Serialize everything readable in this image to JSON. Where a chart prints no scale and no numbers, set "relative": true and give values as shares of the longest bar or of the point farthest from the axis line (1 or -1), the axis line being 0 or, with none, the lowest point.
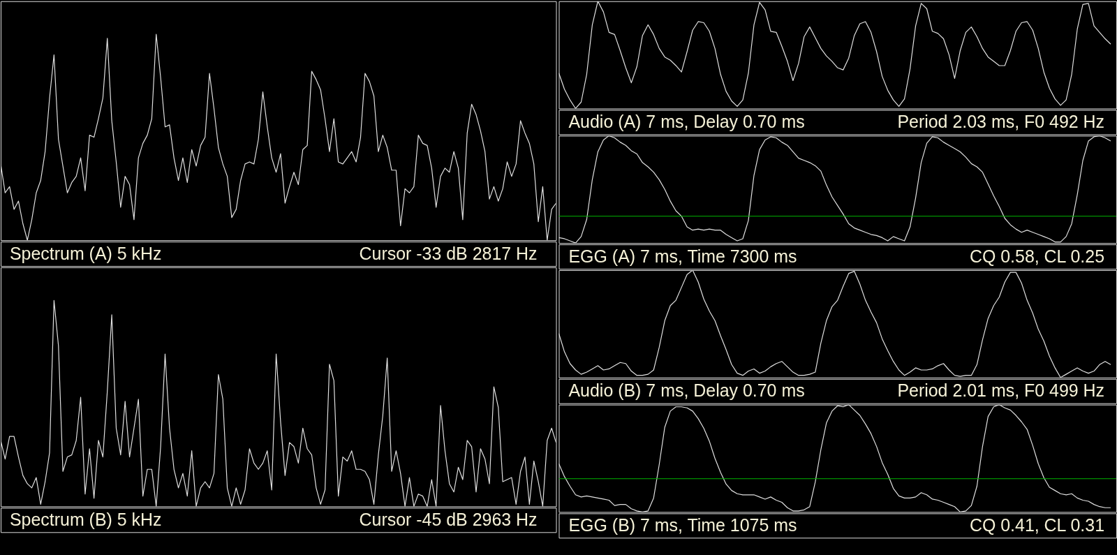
{
  "chart_data": [
    {
      "type": "line",
      "title": "Spectrum (A)   5 kHz",
      "annotations": [
        "Cursor  -33 dB   2817 Hz"
      ],
      "relative": true,
      "tick_labels": false,
      "categories": [
        null,
        null,
        null,
        null,
        null,
        null,
        null,
        null,
        null,
        null,
        null,
        null,
        null,
        null,
        null,
        null,
        null,
        null,
        null,
        null,
        null,
        null,
        null,
        null,
        null,
        null,
        null,
        null,
        null,
        null,
        null,
        null,
        null,
        null,
        null,
        null,
        null,
        null,
        null,
        null,
        null,
        null,
        null,
        null,
        null,
        null,
        null,
        null,
        null,
        null,
        null,
        null,
        null,
        null,
        null,
        null,
        null,
        null,
        null,
        null,
        null,
        null,
        null,
        null,
        null,
        null,
        null,
        null,
        null,
        null,
        null,
        null,
        null,
        null,
        null,
        null,
        null,
        null,
        null,
        null,
        null,
        null,
        null,
        null,
        null,
        null,
        null,
        null,
        null,
        null,
        null,
        null,
        null,
        null,
        null,
        null,
        null,
        null,
        null,
        null,
        null,
        null,
        null,
        null,
        null,
        null,
        null,
        null,
        null,
        null,
        null,
        null,
        null,
        null,
        null,
        null,
        null,
        null,
        null,
        null,
        null,
        null,
        null,
        null,
        null,
        null
      ],
      "series": [
        {
          "color": "#e0e0e0",
          "values": [
            0.37,
            0.23,
            0.26,
            0.15,
            0.19,
            0.08,
            0,
            0.1,
            0.23,
            0.29,
            0.43,
            0.69,
            0.9,
            0.49,
            0.36,
            0.23,
            0.28,
            0.31,
            0.4,
            0.24,
            0.51,
            0.5,
            0.59,
            0.69,
            0.98,
            0.58,
            0.38,
            0.16,
            0.31,
            0.27,
            0.1,
            0.4,
            0.47,
            0.51,
            0.59,
            1.0,
            0.79,
            0.55,
            0.56,
            0.4,
            0.29,
            0.4,
            0.28,
            0.44,
            0.36,
            0.46,
            0.5,
            0.81,
            0.64,
            0.45,
            0.37,
            0.31,
            0.11,
            0.15,
            0.29,
            0.37,
            0.38,
            0.37,
            0.49,
            0.72,
            0.55,
            0.4,
            0.33,
            0.42,
            0.18,
            0.26,
            0.33,
            0.27,
            0.44,
            0.46,
            0.82,
            0.78,
            0.73,
            0.59,
            0.43,
            0.59,
            0.38,
            0.37,
            0.4,
            0.43,
            0.38,
            0.5,
            0.81,
            0.77,
            0.7,
            0.43,
            0.51,
            0.45,
            0.34,
            0.34,
            0.07,
            0.25,
            0.23,
            0.26,
            0.51,
            0.47,
            0.46,
            0.35,
            0.16,
            0.31,
            0.35,
            0.33,
            0.43,
            0.35,
            0.1,
            0.52,
            0.66,
            0.61,
            0.53,
            0.43,
            0.2,
            0.26,
            0.19,
            0.25,
            0.38,
            0.31,
            0.37,
            0.58,
            0.52,
            0.47,
            0.37,
            0.09,
            0.26,
            0,
            0.15,
            0.18
          ]
        }
      ]
    },
    {
      "type": "line",
      "title": "Audio (A) 7  ms, Delay 0.70 ms",
      "annotations": [
        "Period 2.03 ms, F0 492 Hz"
      ],
      "relative": true,
      "tick_labels": false,
      "categories": [
        null,
        null,
        null,
        null,
        null,
        null,
        null,
        null,
        null,
        null,
        null,
        null,
        null,
        null,
        null,
        null,
        null,
        null,
        null,
        null,
        null,
        null,
        null,
        null,
        null,
        null,
        null,
        null,
        null,
        null,
        null,
        null,
        null,
        null,
        null,
        null,
        null,
        null,
        null,
        null,
        null,
        null,
        null,
        null,
        null,
        null,
        null,
        null,
        null,
        null,
        null,
        null,
        null,
        null,
        null,
        null,
        null,
        null,
        null,
        null,
        null,
        null,
        null,
        null,
        null,
        null,
        null,
        null,
        null,
        null,
        null,
        null,
        null,
        null,
        null,
        null,
        null,
        null,
        null,
        null,
        null,
        null,
        null,
        null,
        null,
        null,
        null,
        null,
        null,
        null,
        null,
        null,
        null,
        null,
        null,
        null,
        null,
        null,
        null,
        null,
        null
      ],
      "series": [
        {
          "color": "#e0e0e0",
          "values": [
            0.33,
            0.18,
            0.08,
            0,
            0.06,
            0.32,
            0.78,
            1.0,
            0.9,
            0.71,
            0.69,
            0.54,
            0.38,
            0.24,
            0.39,
            0.68,
            0.78,
            0.69,
            0.56,
            0.48,
            0.45,
            0.4,
            0.34,
            0.53,
            0.73,
            0.81,
            0.8,
            0.72,
            0.56,
            0.32,
            0.16,
            0.07,
            0.02,
            0.08,
            0.33,
            0.78,
            0.99,
            0.92,
            0.72,
            0.71,
            0.58,
            0.44,
            0.26,
            0.42,
            0.67,
            0.76,
            0.66,
            0.56,
            0.49,
            0.44,
            0.38,
            0.36,
            0.47,
            0.68,
            0.79,
            0.81,
            0.71,
            0.53,
            0.3,
            0.17,
            0.08,
            0.02,
            0.09,
            0.37,
            0.77,
            0.98,
            0.93,
            0.72,
            0.7,
            0.65,
            0.5,
            0.28,
            0.54,
            0.71,
            0.76,
            0.67,
            0.56,
            0.48,
            0.44,
            0.4,
            0.4,
            0.54,
            0.72,
            0.8,
            0.81,
            0.73,
            0.56,
            0.34,
            0.19,
            0.09,
            0.03,
            0.08,
            0.32,
            0.74,
            0.97,
            0.98,
            0.77,
            0.71,
            0.65,
            0.6,
            null
          ]
        }
      ]
    },
    {
      "type": "line",
      "title": "EGG (A) 7  ms, Time 7300 ms",
      "annotations": [
        "CQ 0.58, CL 0.25"
      ],
      "relative": true,
      "tick_labels": false,
      "categories": [
        null,
        null,
        null,
        null,
        null,
        null,
        null,
        null,
        null,
        null,
        null,
        null,
        null,
        null,
        null,
        null,
        null,
        null,
        null,
        null,
        null,
        null,
        null,
        null,
        null,
        null,
        null,
        null,
        null,
        null,
        null,
        null,
        null,
        null,
        null,
        null,
        null,
        null,
        null,
        null,
        null,
        null,
        null,
        null,
        null,
        null,
        null,
        null,
        null,
        null,
        null,
        null,
        null,
        null,
        null,
        null,
        null,
        null,
        null,
        null,
        null,
        null,
        null,
        null,
        null,
        null,
        null,
        null,
        null,
        null,
        null,
        null,
        null,
        null,
        null,
        null,
        null,
        null,
        null,
        null,
        null,
        null,
        null,
        null,
        null,
        null,
        null,
        null,
        null,
        null,
        null,
        null,
        null,
        null,
        null,
        null,
        null,
        null,
        null,
        null,
        null
      ],
      "series": [
        {
          "color": "#e0e0e0",
          "values": [
            0.05,
            0.04,
            0.02,
            0,
            0.06,
            0.22,
            0.59,
            0.85,
            0.96,
            1.0,
            0.98,
            0.94,
            0.91,
            0.86,
            0.83,
            0.75,
            0.71,
            0.66,
            0.59,
            0.5,
            0.39,
            0.3,
            0.25,
            0.15,
            0.12,
            0.13,
            0.12,
            0.13,
            0.12,
            0.12,
            0.08,
            0.05,
            0.02,
            0.04,
            0.21,
            0.63,
            0.87,
            0.96,
            0.99,
            0.98,
            0.94,
            0.91,
            0.85,
            0.79,
            0.77,
            0.75,
            0.72,
            0.67,
            0.54,
            0.43,
            0.35,
            0.27,
            0.18,
            0.14,
            0.12,
            0.1,
            0.08,
            0.07,
            0.05,
            0.02,
            0.06,
            0.04,
            0.02,
            0.15,
            0.42,
            0.75,
            0.93,
            0.99,
            0.98,
            0.94,
            0.91,
            0.88,
            0.85,
            0.8,
            0.74,
            0.71,
            0.66,
            0.55,
            0.44,
            0.34,
            0.23,
            0.17,
            0.13,
            0.1,
            0.12,
            0.1,
            0.08,
            0.06,
            0.04,
            0.01,
            0.01,
            0.06,
            0.18,
            0.45,
            0.77,
            0.95,
            0.99,
            1.0,
            0.98,
            0.95,
            null
          ]
        }
      ],
      "ref_lines": [
        {
          "axis": "y",
          "value": 0.25,
          "color": "#00b400"
        }
      ]
    },
    {
      "type": "line",
      "title": "Spectrum (B)   5 kHz",
      "annotations": [
        "Cursor  -45 dB   2963 Hz"
      ],
      "relative": true,
      "tick_labels": false,
      "categories": [
        null,
        null,
        null,
        null,
        null,
        null,
        null,
        null,
        null,
        null,
        null,
        null,
        null,
        null,
        null,
        null,
        null,
        null,
        null,
        null,
        null,
        null,
        null,
        null,
        null,
        null,
        null,
        null,
        null,
        null,
        null,
        null,
        null,
        null,
        null,
        null,
        null,
        null,
        null,
        null,
        null,
        null,
        null,
        null,
        null,
        null,
        null,
        null,
        null,
        null,
        null,
        null,
        null,
        null,
        null,
        null,
        null,
        null,
        null,
        null,
        null,
        null,
        null,
        null,
        null,
        null,
        null,
        null,
        null,
        null,
        null,
        null,
        null,
        null,
        null,
        null,
        null,
        null,
        null,
        null,
        null,
        null,
        null,
        null,
        null,
        null,
        null,
        null,
        null,
        null,
        null,
        null,
        null,
        null,
        null,
        null,
        null,
        null,
        null,
        null,
        null,
        null,
        null,
        null,
        null,
        null,
        null,
        null,
        null,
        null,
        null,
        null,
        null,
        null,
        null,
        null,
        null,
        null,
        null,
        null,
        null,
        null,
        null,
        null,
        null,
        null
      ],
      "series": [
        {
          "color": "#e0e0e0",
          "values": [
            0.32,
            0.23,
            0.34,
            0.34,
            0.24,
            0.15,
            0.11,
            0.09,
            0.14,
            0.01,
            0.12,
            0.26,
            1.0,
            0.78,
            0.17,
            0.24,
            0.25,
            0.32,
            0.53,
            0.06,
            0.28,
            0.04,
            0.32,
            0.24,
            0.56,
            0.93,
            0.38,
            0.25,
            0.51,
            0.24,
            0.38,
            0.52,
            0.05,
            0.18,
            0.18,
            0,
            0.29,
            0.74,
            0.38,
            0.18,
            0.09,
            0.16,
            0.05,
            0.27,
            0,
            0.09,
            0.12,
            0.09,
            0.16,
            0.64,
            0.52,
            0.09,
            0,
            0.09,
            0.01,
            0.08,
            0.28,
            0.21,
            0.18,
            0.21,
            0.27,
            0.08,
            0.74,
            0.41,
            0.15,
            0.31,
            0.29,
            0.21,
            0.38,
            0.28,
            0.25,
            0.09,
            0.01,
            0.08,
            0.69,
            0.61,
            0.05,
            0.24,
            0.22,
            0.27,
            0.18,
            0.18,
            0.17,
            0.13,
            0.01,
            0.25,
            0.44,
            0.72,
            0.17,
            0.27,
            0.16,
            0,
            0.14,
            0,
            0.06,
            0.05,
            0,
            0.13,
            0,
            0.49,
            0.27,
            0.11,
            0.07,
            0.19,
            0.13,
            0.32,
            0.29,
            0.07,
            0.28,
            0.23,
            0.11,
            0.58,
            0.48,
            0.12,
            0.13,
            0.14,
            0.01,
            0.17,
            0.24,
            0.01,
            0.22,
            0.12,
            0,
            0.32,
            0.38,
            0.31
          ]
        }
      ]
    },
    {
      "type": "line",
      "title": "Audio (B) 7  ms, Delay 0.70 ms",
      "annotations": [
        "Period 2.01 ms, F0 499 Hz"
      ],
      "relative": true,
      "tick_labels": false,
      "categories": [
        null,
        null,
        null,
        null,
        null,
        null,
        null,
        null,
        null,
        null,
        null,
        null,
        null,
        null,
        null,
        null,
        null,
        null,
        null,
        null,
        null,
        null,
        null,
        null,
        null,
        null,
        null,
        null,
        null,
        null,
        null,
        null,
        null,
        null,
        null,
        null,
        null,
        null,
        null,
        null,
        null,
        null,
        null,
        null,
        null,
        null,
        null,
        null,
        null,
        null,
        null,
        null,
        null,
        null,
        null,
        null,
        null,
        null,
        null,
        null,
        null,
        null,
        null,
        null,
        null,
        null,
        null,
        null,
        null,
        null,
        null,
        null,
        null,
        null,
        null,
        null,
        null,
        null,
        null,
        null,
        null,
        null,
        null,
        null,
        null,
        null,
        null,
        null,
        null,
        null,
        null,
        null,
        null,
        null,
        null,
        null,
        null,
        null,
        null,
        null,
        null
      ],
      "series": [
        {
          "color": "#e0e0e0",
          "values": [
            0.41,
            0.24,
            0.13,
            0.07,
            0.03,
            0.05,
            0.08,
            0.11,
            0.07,
            0.08,
            0.11,
            0.14,
            0.13,
            0.06,
            0.02,
            0.02,
            0.03,
            0.07,
            0.28,
            0.53,
            0.67,
            0.72,
            0.84,
            0.96,
            1.0,
            0.89,
            0.73,
            0.62,
            0.53,
            0.39,
            0.26,
            0.12,
            0.04,
            0.02,
            0.06,
            0.08,
            0.04,
            0.06,
            0.1,
            0.13,
            0.15,
            0.1,
            0.05,
            0.02,
            0.02,
            0.03,
            0.05,
            0.32,
            0.53,
            0.66,
            0.72,
            0.85,
            0.97,
            0.99,
            0.87,
            0.72,
            0.61,
            0.51,
            0.36,
            0.25,
            0.15,
            0.07,
            0.02,
            0.05,
            0.09,
            0.07,
            0.07,
            0.08,
            0.11,
            0.13,
            0.07,
            0.02,
            0.01,
            0.02,
            0.02,
            0.12,
            0.35,
            0.55,
            0.67,
            0.75,
            0.89,
            0.98,
            0.98,
            0.88,
            0.72,
            0.6,
            0.45,
            0.34,
            0.2,
            0.09,
            0,
            0.03,
            0.06,
            0.09,
            0.06,
            0.04,
            0.06,
            0.12,
            0.15,
            0.12,
            null
          ]
        }
      ]
    },
    {
      "type": "line",
      "title": "EGG (B) 7  ms, Time 1075 ms",
      "annotations": [
        "CQ 0.41, CL 0.31"
      ],
      "relative": true,
      "tick_labels": false,
      "categories": [
        null,
        null,
        null,
        null,
        null,
        null,
        null,
        null,
        null,
        null,
        null,
        null,
        null,
        null,
        null,
        null,
        null,
        null,
        null,
        null,
        null,
        null,
        null,
        null,
        null,
        null,
        null,
        null,
        null,
        null,
        null,
        null,
        null,
        null,
        null,
        null,
        null,
        null,
        null,
        null,
        null,
        null,
        null,
        null,
        null,
        null,
        null,
        null,
        null,
        null,
        null,
        null,
        null,
        null,
        null,
        null,
        null,
        null,
        null,
        null,
        null,
        null,
        null,
        null,
        null,
        null,
        null,
        null,
        null,
        null,
        null,
        null,
        null,
        null,
        null,
        null,
        null,
        null,
        null,
        null,
        null,
        null,
        null,
        null,
        null,
        null,
        null,
        null,
        null,
        null,
        null,
        null,
        null,
        null,
        null,
        null,
        null,
        null,
        null,
        null,
        null
      ],
      "series": [
        {
          "color": "#e0e0e0",
          "values": [
            0.45,
            0.33,
            0.24,
            0.16,
            0.14,
            0.15,
            0.14,
            0.13,
            0.12,
            0.11,
            0.06,
            0.07,
            0.07,
            0.03,
            0.01,
            0,
            0.01,
            0.13,
            0.44,
            0.79,
            0.94,
            0.98,
            0.98,
            0.97,
            0.94,
            0.87,
            0.78,
            0.66,
            0.5,
            0.37,
            0.26,
            0.2,
            0.17,
            0.16,
            0.16,
            0.16,
            0.14,
            0.12,
            0.14,
            0.11,
            0.09,
            0.04,
            0.01,
            0.01,
            0.02,
            0.05,
            0.28,
            0.58,
            0.83,
            0.94,
            0.99,
            0.98,
            1.0,
            0.95,
            0.9,
            0.82,
            0.73,
            0.61,
            0.46,
            0.35,
            0.22,
            0.15,
            0.13,
            0.13,
            0.14,
            0.18,
            0.16,
            0.12,
            0.11,
            0.09,
            0.07,
            0.05,
            0,
            0.01,
            0.06,
            0.24,
            0.61,
            0.89,
            0.98,
            1.0,
            0.97,
            0.95,
            0.9,
            0.84,
            0.77,
            0.62,
            0.45,
            0.32,
            0.23,
            0.2,
            0.17,
            0.16,
            0.17,
            0.13,
            0.11,
            0.1,
            0.07,
            0.05,
            0.04,
            0.04,
            null
          ]
        }
      ],
      "ref_lines": [
        {
          "axis": "y",
          "value": 0.31,
          "color": "#00b400"
        }
      ]
    }
  ]
}
